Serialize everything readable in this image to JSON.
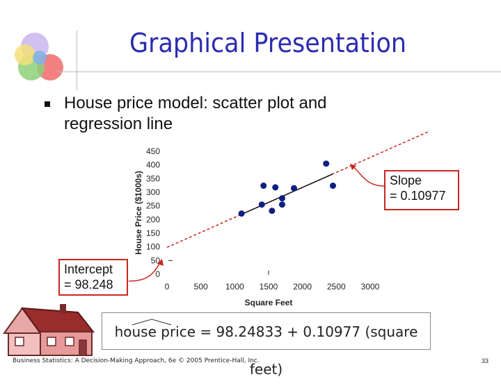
{
  "slide": {
    "title": "Graphical Presentation",
    "bullet": "House price model:  scatter plot and regression line",
    "footer": "Business Statistics: A Decision-Making Approach, 6e © 2005 Prentice-Hall, Inc.",
    "page_number": "33"
  },
  "callouts": {
    "slope_line1": "Slope",
    "slope_line2": "= 0.10977",
    "intercept_line1": "Intercept",
    "intercept_line2": "= 98.248"
  },
  "equation": {
    "text": "house price = 98.24833 + 0.10977 (square feet)"
  },
  "colors": {
    "title": "#2b2bb0",
    "points": "#0d1f80",
    "regression": "#c8261c",
    "callout_border": "#c8261c"
  },
  "chart_data": {
    "type": "scatter",
    "xlabel": "Square Feet",
    "ylabel": "House Price ($1000s)",
    "xlim": [
      0,
      3000
    ],
    "ylim": [
      0,
      450
    ],
    "xticks": [
      0,
      500,
      1000,
      1500,
      2000,
      2500,
      3000
    ],
    "yticks": [
      0,
      50,
      100,
      150,
      200,
      250,
      300,
      350,
      400,
      450
    ],
    "points": [
      {
        "x": 1100,
        "y": 222
      },
      {
        "x": 1400,
        "y": 255
      },
      {
        "x": 1425,
        "y": 324
      },
      {
        "x": 1550,
        "y": 232
      },
      {
        "x": 1600,
        "y": 318
      },
      {
        "x": 1700,
        "y": 255
      },
      {
        "x": 1700,
        "y": 278
      },
      {
        "x": 1875,
        "y": 315
      },
      {
        "x": 2350,
        "y": 405
      },
      {
        "x": 2450,
        "y": 324
      }
    ],
    "fit_segment": {
      "x": [
        1100,
        2450
      ]
    },
    "regression": {
      "intercept": 98.24833,
      "slope": 0.10977
    },
    "regression_extent": {
      "x": [
        0,
        3850
      ]
    },
    "grid": false,
    "legend": "none"
  }
}
